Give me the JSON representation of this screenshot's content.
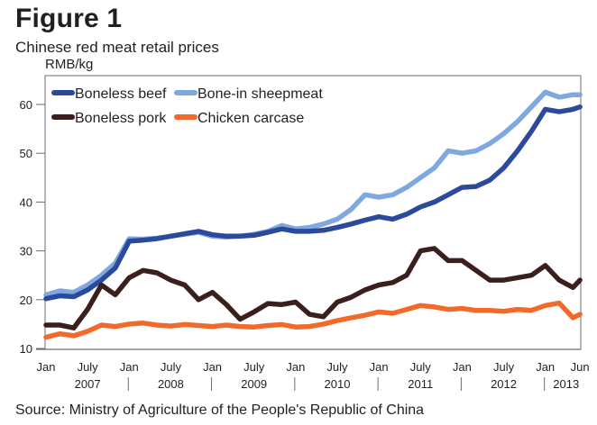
{
  "figure": {
    "title": "Figure 1",
    "subtitle": "Chinese red meat retail prices",
    "source": "Source: Ministry of Agriculture of the People's Republic of China"
  },
  "chart_data": {
    "type": "line",
    "title": "Chinese red meat retail prices",
    "ylabel": "RMB/kg",
    "xlabel": "",
    "ylim": [
      10,
      65
    ],
    "yticks": [
      10,
      20,
      30,
      40,
      50,
      60
    ],
    "xlim_months": [
      0,
      78
    ],
    "xticks": [
      {
        "label": "Jan",
        "month": 0
      },
      {
        "label": "July",
        "month": 6
      },
      {
        "label": "Jan",
        "month": 12
      },
      {
        "label": "July",
        "month": 18
      },
      {
        "label": "Jan",
        "month": 24
      },
      {
        "label": "July",
        "month": 30
      },
      {
        "label": "Jan",
        "month": 36
      },
      {
        "label": "July",
        "month": 42
      },
      {
        "label": "Jan",
        "month": 48
      },
      {
        "label": "July",
        "month": 54
      },
      {
        "label": "Jan",
        "month": 60
      },
      {
        "label": "July",
        "month": 66
      },
      {
        "label": "Jan",
        "month": 72
      },
      {
        "label": "Jun",
        "month": 77
      }
    ],
    "year_labels": [
      {
        "label": "2007",
        "month": 6
      },
      {
        "label": "2008",
        "month": 18
      },
      {
        "label": "2009",
        "month": 30
      },
      {
        "label": "2010",
        "month": 42
      },
      {
        "label": "2011",
        "month": 54
      },
      {
        "label": "2012",
        "month": 66
      },
      {
        "label": "2013",
        "month": 75
      }
    ],
    "year_separators": [
      12,
      24,
      36,
      48,
      60,
      72
    ],
    "grid": false,
    "legend_position": "top-left",
    "x_months": [
      0,
      2,
      4,
      6,
      8,
      10,
      12,
      14,
      16,
      18,
      20,
      22,
      24,
      26,
      28,
      30,
      32,
      34,
      36,
      38,
      40,
      42,
      44,
      46,
      48,
      50,
      52,
      54,
      56,
      58,
      60,
      62,
      64,
      66,
      68,
      70,
      72,
      74,
      76,
      77
    ],
    "series": [
      {
        "name": "Boneless beef",
        "color": "#2b4a9b",
        "values": [
          20.2,
          20.8,
          20.6,
          22.0,
          24.0,
          26.5,
          32.0,
          32.2,
          32.5,
          33.0,
          33.5,
          34.0,
          33.3,
          33.0,
          33.0,
          33.2,
          33.8,
          34.5,
          34.0,
          34.0,
          34.2,
          34.8,
          35.5,
          36.3,
          37.0,
          36.5,
          37.5,
          39.0,
          40.0,
          41.5,
          43.0,
          43.2,
          44.5,
          47.0,
          50.5,
          54.5,
          59.0,
          58.5,
          59.0,
          59.5
        ]
      },
      {
        "name": "Bone-in sheepmeat",
        "color": "#7fa8e0",
        "values": [
          21.0,
          21.8,
          21.5,
          23.0,
          25.0,
          27.5,
          32.5,
          32.4,
          32.6,
          33.0,
          33.4,
          33.8,
          33.0,
          32.8,
          33.0,
          33.4,
          34.0,
          35.2,
          34.5,
          34.8,
          35.5,
          36.5,
          38.5,
          41.5,
          41.0,
          41.5,
          43.0,
          45.0,
          47.0,
          50.5,
          50.0,
          50.5,
          52.0,
          54.0,
          56.5,
          59.5,
          62.5,
          61.5,
          62.0,
          62.0
        ]
      },
      {
        "name": "Boneless pork",
        "color": "#3b1f1c",
        "values": [
          14.8,
          14.8,
          14.2,
          18.0,
          23.0,
          21.0,
          24.5,
          26.0,
          25.5,
          24.0,
          23.0,
          20.0,
          21.5,
          19.0,
          16.0,
          17.5,
          19.2,
          19.0,
          19.5,
          17.0,
          16.5,
          19.5,
          20.5,
          22.0,
          23.0,
          23.5,
          25.0,
          30.0,
          30.5,
          28.0,
          28.0,
          26.0,
          24.0,
          24.0,
          24.5,
          25.0,
          27.0,
          24.0,
          22.5,
          24.0
        ]
      },
      {
        "name": "Chicken carcase",
        "color": "#f26a2a",
        "values": [
          12.3,
          13.0,
          12.6,
          13.5,
          14.8,
          14.5,
          15.0,
          15.2,
          14.8,
          14.6,
          14.9,
          14.7,
          14.5,
          14.8,
          14.5,
          14.4,
          14.7,
          14.9,
          14.4,
          14.5,
          15.0,
          15.7,
          16.3,
          16.8,
          17.5,
          17.2,
          18.0,
          18.8,
          18.5,
          18.0,
          18.2,
          17.8,
          17.8,
          17.6,
          18.0,
          17.8,
          18.8,
          19.3,
          16.3,
          17.0
        ]
      }
    ]
  }
}
